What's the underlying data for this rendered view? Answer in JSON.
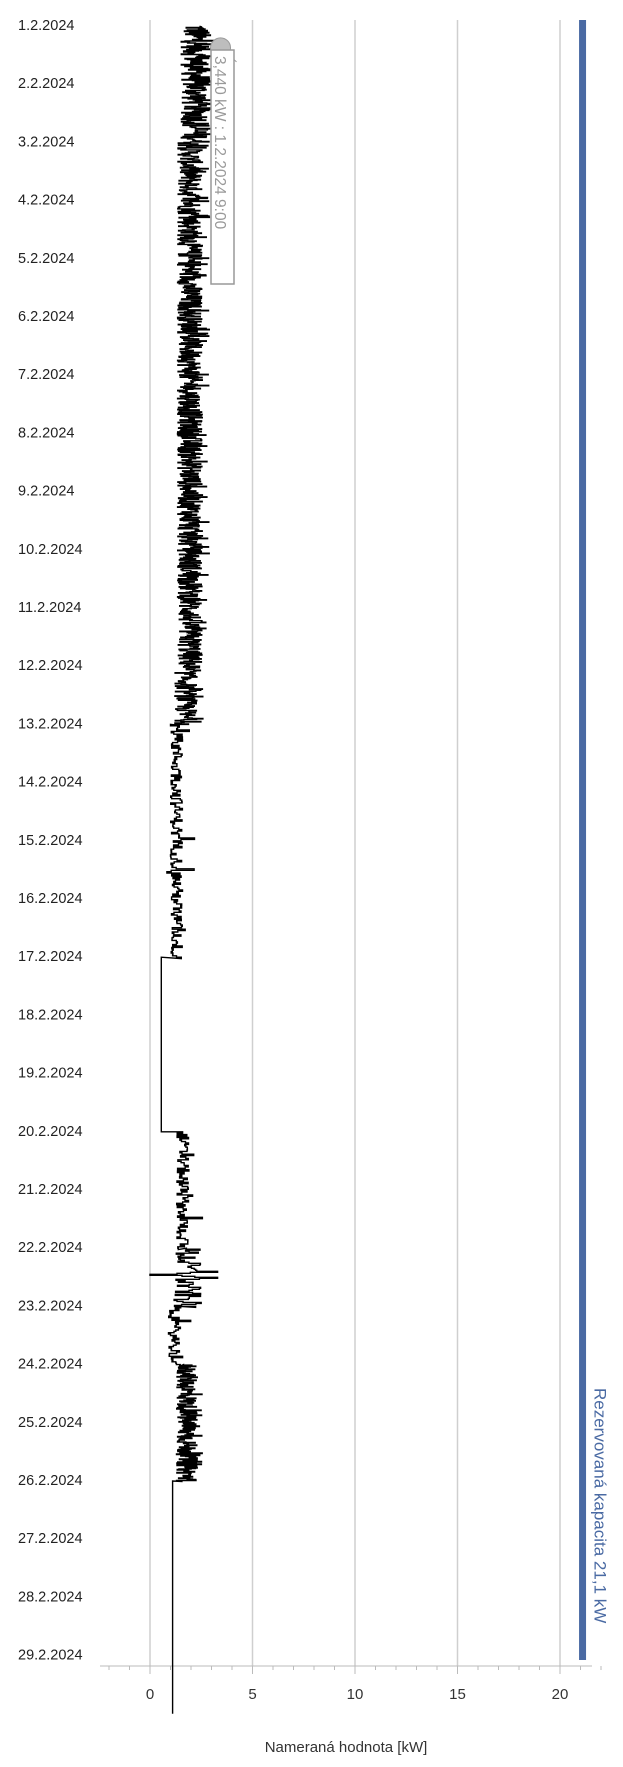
{
  "chart_data": {
    "type": "line",
    "orientation": "vertical-time",
    "xlabel": "Nameraná hodnota [kW]",
    "ylabel": "",
    "xlim": [
      -2,
      22.5
    ],
    "x_ticks": [
      0,
      5,
      10,
      15,
      20
    ],
    "x_tick_labels": [
      "0",
      "5",
      "10",
      "15",
      "20"
    ],
    "ylim": [
      "2024-02-01",
      "2024-03-01"
    ],
    "y_tick_labels": [
      "1.2.2024",
      "2.2.2024",
      "3.2.2024",
      "4.2.2024",
      "5.2.2024",
      "6.2.2024",
      "7.2.2024",
      "8.2.2024",
      "9.2.2024",
      "10.2.2024",
      "11.2.2024",
      "12.2.2024",
      "13.2.2024",
      "14.2.2024",
      "15.2.2024",
      "16.2.2024",
      "17.2.2024",
      "18.2.2024",
      "19.2.2024",
      "20.2.2024",
      "21.2.2024",
      "22.2.2024",
      "23.2.2024",
      "24.2.2024",
      "25.2.2024",
      "26.2.2024",
      "27.2.2024",
      "28.2.2024",
      "29.2.2024"
    ],
    "grid": true,
    "reference_line": {
      "value": 21.1,
      "label": "Rezervovaná kapacita 21,1 kW",
      "color": "#4a6aa3"
    },
    "annotation": {
      "x": 3.44,
      "date": "2024-02-01",
      "time": "09:00",
      "text": "3,440 kW : 1.2.2024 9:00"
    },
    "series": [
      {
        "color": "#000000",
        "description": "Measured power over time; segments with estimated min/max/mean values",
        "segments": [
          {
            "start": "2024-02-01",
            "end": "2024-02-03",
            "min": 1.1,
            "max": 3.4,
            "mean": 2.0,
            "style": "dense"
          },
          {
            "start": "2024-02-03",
            "end": "2024-02-12",
            "min": 1.0,
            "max": 2.9,
            "mean": 1.8,
            "style": "dense"
          },
          {
            "start": "2024-02-12",
            "end": "2024-02-13",
            "min": 0.9,
            "max": 2.6,
            "mean": 1.6,
            "style": "dense"
          },
          {
            "start": "2024-02-13",
            "end": "2024-02-17",
            "min": 0.8,
            "max": 2.3,
            "mean": 1.3,
            "style": "sparse"
          },
          {
            "start": "2024-02-17",
            "end": "2024-02-20",
            "min": 0.5,
            "max": 0.8,
            "mean": 0.55,
            "style": "flat"
          },
          {
            "start": "2024-02-20",
            "end": "2024-02-22",
            "min": 0.9,
            "max": 2.9,
            "mean": 1.6,
            "style": "sparse"
          },
          {
            "start": "2024-02-22",
            "end": "2024-02-23",
            "min": 0.0,
            "max": 3.3,
            "mean": 1.8,
            "style": "spike"
          },
          {
            "start": "2024-02-23",
            "end": "2024-02-24",
            "min": 0.8,
            "max": 2.0,
            "mean": 1.2,
            "style": "sparse"
          },
          {
            "start": "2024-02-24",
            "end": "2024-02-26",
            "min": 1.0,
            "max": 2.6,
            "mean": 1.8,
            "style": "dense"
          },
          {
            "start": "2024-02-26",
            "end": "2024-03-01",
            "min": 1.1,
            "max": 1.1,
            "mean": 1.1,
            "style": "flat"
          }
        ]
      }
    ]
  }
}
